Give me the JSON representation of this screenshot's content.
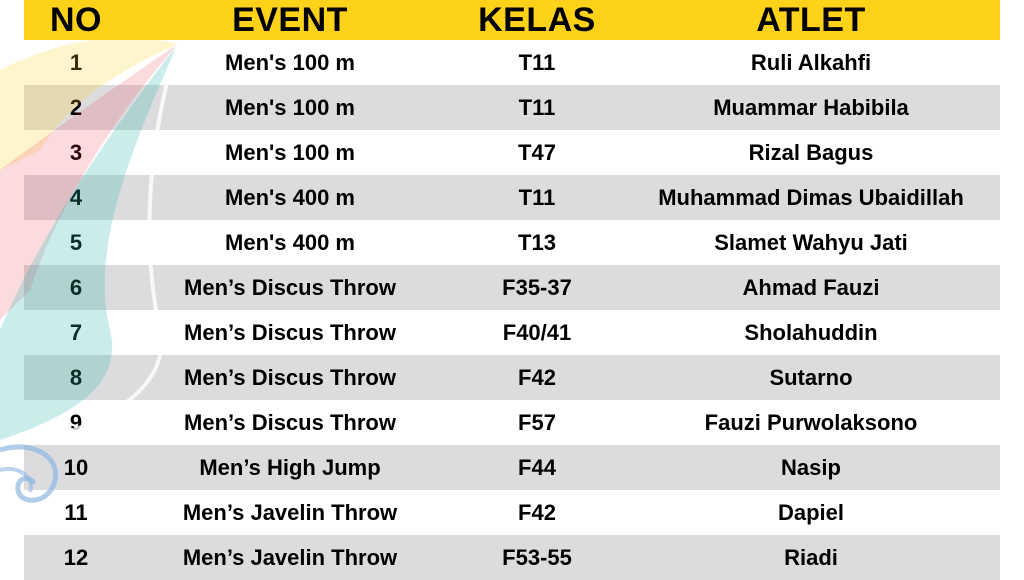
{
  "header": {
    "no": "NO",
    "event": "EVENT",
    "kelas": "KELAS",
    "atlet": "ATLET"
  },
  "rows": [
    {
      "no": "1",
      "event": "Men's 100 m",
      "kelas": "T11",
      "atlet": "Ruli Alkahfi"
    },
    {
      "no": "2",
      "event": "Men's 100 m",
      "kelas": "T11",
      "atlet": "Muammar Habibila"
    },
    {
      "no": "3",
      "event": "Men's 100 m",
      "kelas": "T47",
      "atlet": "Rizal Bagus"
    },
    {
      "no": "4",
      "event": "Men's 400 m",
      "kelas": "T11",
      "atlet": "Muhammad Dimas Ubaidillah"
    },
    {
      "no": "5",
      "event": "Men's 400 m",
      "kelas": "T13",
      "atlet": "Slamet Wahyu Jati"
    },
    {
      "no": "6",
      "event": "Men’s Discus Throw",
      "kelas": "F35-37",
      "atlet": "Ahmad Fauzi"
    },
    {
      "no": "7",
      "event": "Men’s Discus Throw",
      "kelas": "F40/41",
      "atlet": "Sholahuddin"
    },
    {
      "no": "8",
      "event": "Men’s Discus Throw",
      "kelas": "F42",
      "atlet": "Sutarno"
    },
    {
      "no": "9",
      "event": "Men’s Discus Throw",
      "kelas": "F57",
      "atlet": "Fauzi Purwolaksono"
    },
    {
      "no": "10",
      "event": "Men’s High Jump",
      "kelas": "F44",
      "atlet": "Nasip"
    },
    {
      "no": "11",
      "event": "Men’s Javelin Throw",
      "kelas": "F42",
      "atlet": "Dapiel"
    },
    {
      "no": "12",
      "event": "Men’s Javelin Throw",
      "kelas": "F53-55",
      "atlet": "Riadi"
    }
  ],
  "colors": {
    "header_bg": "#ffd21a",
    "row_alt_bg": "#dcdcde"
  }
}
